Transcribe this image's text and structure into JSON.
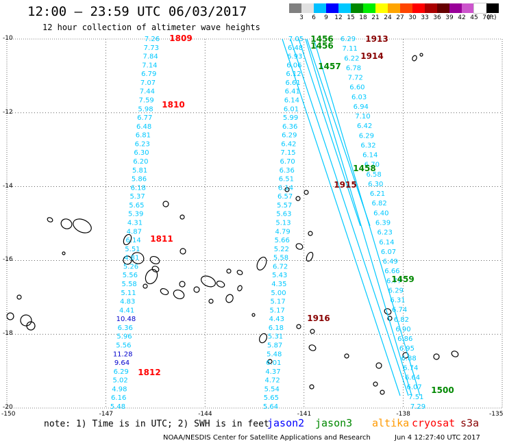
{
  "header": {
    "title": "12:00 – 23:59 UTC 06/03/2017",
    "subtitle": "12 hour collection of altimeter wave heights"
  },
  "colorbar": {
    "colors": [
      "#808080",
      "#e0e0e0",
      "#00c0ff",
      "#0000ff",
      "#00c8ff",
      "#008800",
      "#00ee00",
      "#ffff00",
      "#ffa500",
      "#ff4500",
      "#ff0000",
      "#aa0000",
      "#660000",
      "#990099",
      "#cc55cc",
      "#ffffff",
      "#000000"
    ],
    "labels": [
      "3",
      "6",
      "9",
      "12",
      "15",
      "18",
      "21",
      "24",
      "27",
      "30",
      "33",
      "36",
      "39",
      "42",
      "45",
      "70"
    ],
    "unit": "(ft)"
  },
  "map": {
    "lat_labels": [
      "-10",
      "-12",
      "-14",
      "-16",
      "-18",
      "-20"
    ],
    "lon_labels": [
      "-150",
      "-147",
      "-144",
      "-141",
      "-138",
      "-135"
    ],
    "extent": {
      "lon_min": -150,
      "lon_max": -135,
      "lat_min": -20,
      "lat_max": -10
    }
  },
  "tracks": {
    "cryosat_west": {
      "color": "#00c8ff",
      "values": [
        "7.26",
        "7.73",
        "7.84",
        "7.14",
        "6.79",
        "7.07",
        "7.44",
        "7.59",
        "5.98",
        "6.77",
        "6.48",
        "6.81",
        "6.23",
        "6.30",
        "6.20",
        "5.81",
        "5.86",
        "6.18",
        "5.37",
        "5.65",
        "5.39",
        "4.31",
        "4.87",
        "6.14",
        "5.51",
        "4.81",
        "5.26",
        "5.56",
        "5.58",
        "5.11",
        "4.83",
        "4.41",
        "10.48",
        "6.36",
        "5.96",
        "5.56",
        "11.28",
        "9.64",
        "6.29",
        "5.02",
        "4.98",
        "6.16",
        "5.48"
      ]
    },
    "cryosat_mid": {
      "color": "#00c8ff",
      "values": [
        "7.05",
        "6.48",
        "6.93",
        "6.06",
        "6.12",
        "6.61",
        "6.41",
        "6.14",
        "6.01",
        "5.99",
        "6.36",
        "6.29",
        "6.42",
        "7.15",
        "6.70",
        "6.36",
        "6.51",
        "6.14",
        "6.57",
        "5.57",
        "5.63",
        "5.13",
        "4.79",
        "5.66",
        "5.22",
        "5.58",
        "6.72",
        "5.43",
        "4.35",
        "5.00",
        "5.17",
        "5.17",
        "4.43",
        "6.18",
        "5.31",
        "5.87",
        "5.48",
        "6.01",
        "4.37",
        "4.72",
        "5.54",
        "5.65",
        "5.64"
      ]
    },
    "cryosat_east": {
      "color": "#00c8ff",
      "values": [
        "6.29",
        "7.11",
        "6.22",
        "6.78",
        "7.72",
        "6.60",
        "6.03",
        "6.94",
        "7.10",
        "6.42",
        "6.29",
        "6.32",
        "6.14",
        "6.70",
        "6.58",
        "6.30",
        "6.21",
        "6.82",
        "6.40",
        "6.39",
        "6.23",
        "6.14",
        "6.07",
        "6.49",
        "6.66",
        "6.77",
        "6.29",
        "6.31",
        "6.74",
        "6.82",
        "6.90",
        "6.86",
        "6.95",
        "6.88",
        "6.74",
        "6.64",
        "6.07",
        "7.51",
        "7.29"
      ]
    },
    "pass_labels": [
      {
        "text": "1809",
        "color": "#ff0000"
      },
      {
        "text": "1810",
        "color": "#ff0000"
      },
      {
        "text": "1811",
        "color": "#ff0000"
      },
      {
        "text": "1812",
        "color": "#ff0000"
      },
      {
        "text": "1456",
        "color": "#008800"
      },
      {
        "text": "1456",
        "color": "#008800"
      },
      {
        "text": "1457",
        "color": "#008800"
      },
      {
        "text": "1458",
        "color": "#008800"
      },
      {
        "text": "1459",
        "color": "#008800"
      },
      {
        "text": "1500",
        "color": "#008800"
      },
      {
        "text": "1913",
        "color": "#880000"
      },
      {
        "text": "1914",
        "color": "#880000"
      },
      {
        "text": "1915",
        "color": "#880000"
      },
      {
        "text": "1916",
        "color": "#880000"
      }
    ]
  },
  "footer": {
    "note": "note: 1) Time is in UTC; 2) SWH is in feet",
    "legend": [
      {
        "name": "jason2",
        "color": "#0000ff"
      },
      {
        "name": "jason3",
        "color": "#008800"
      },
      {
        "name": "altika",
        "color": "#ff9900"
      },
      {
        "name": "cryosat",
        "color": "#ff0000"
      },
      {
        "name": "s3a",
        "color": "#880000"
      }
    ],
    "credit": "NOAA/NESDIS Center for Satellite Applications and Research",
    "timestamp": "Jun  4 12:27:40 UTC 2017"
  }
}
